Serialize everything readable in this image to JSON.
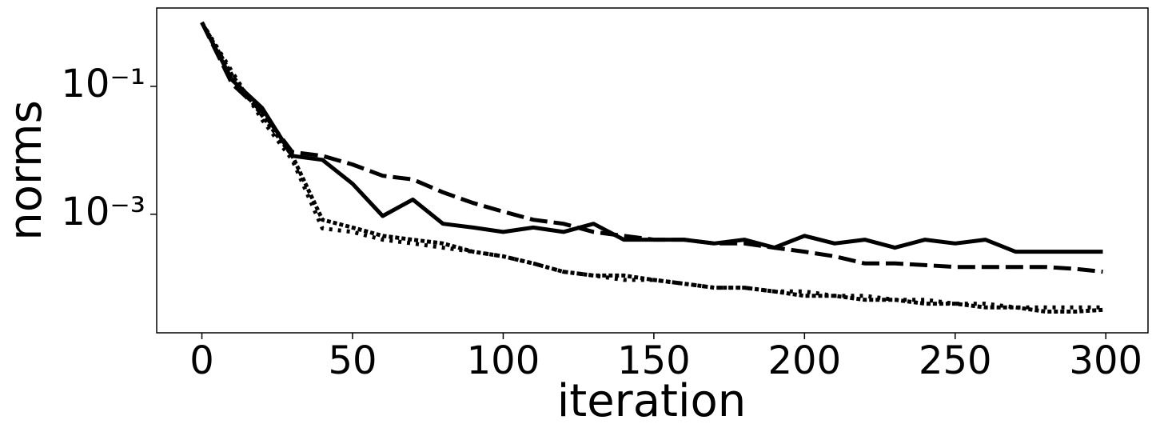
{
  "chart_data": {
    "type": "line",
    "xlabel": "iteration",
    "ylabel": "norms",
    "x": [
      0,
      10,
      20,
      30,
      40,
      50,
      60,
      70,
      80,
      90,
      100,
      110,
      120,
      130,
      140,
      150,
      160,
      170,
      180,
      190,
      200,
      210,
      220,
      230,
      240,
      250,
      260,
      270,
      280,
      290,
      299
    ],
    "series": [
      {
        "color": "#000000",
        "linestyle": "solid",
        "values": [
          1.0,
          0.126,
          0.046,
          0.0082,
          0.0071,
          0.003,
          0.00094,
          0.0017,
          0.00071,
          0.00062,
          0.00053,
          0.00062,
          0.00053,
          0.00071,
          0.0004,
          0.0004,
          0.0004,
          0.00035,
          0.0004,
          0.0003,
          0.00046,
          0.00035,
          0.0004,
          0.0003,
          0.0004,
          0.00035,
          0.0004,
          0.00026,
          0.00026,
          0.00026,
          0.00026
        ]
      },
      {
        "color": "#000000",
        "linestyle": "dashed",
        "values": [
          1.0,
          0.11,
          0.04,
          0.0094,
          0.0082,
          0.006,
          0.004,
          0.0035,
          0.0022,
          0.0015,
          0.0011,
          0.00082,
          0.00071,
          0.00053,
          0.00046,
          0.0004,
          0.0004,
          0.00035,
          0.00035,
          0.0003,
          0.00026,
          0.00022,
          0.00017,
          0.00017,
          0.00016,
          0.00015,
          0.00015,
          0.00015,
          0.00015,
          0.00014,
          0.000126
        ]
      },
      {
        "color": "#000000",
        "linestyle": "dotted",
        "values": [
          1.0,
          0.17,
          0.03,
          0.0071,
          0.0006,
          0.00053,
          0.0004,
          0.00035,
          0.0003,
          0.00026,
          0.00022,
          0.00017,
          0.000126,
          0.00011,
          9.4e-05,
          9.4e-05,
          8.2e-05,
          7.1e-05,
          7.1e-05,
          6.2e-05,
          6.2e-05,
          5.3e-05,
          5.3e-05,
          4.6e-05,
          4.6e-05,
          4e-05,
          4e-05,
          3.5e-05,
          3.5e-05,
          3.5e-05,
          3.5e-05
        ]
      },
      {
        "color": "#000000",
        "linestyle": "densely-dotted",
        "values": [
          1.0,
          0.15,
          0.035,
          0.0082,
          0.00082,
          0.00062,
          0.00046,
          0.0004,
          0.00035,
          0.00026,
          0.00022,
          0.00017,
          0.000126,
          0.00011,
          0.00011,
          9.4e-05,
          8.2e-05,
          7.1e-05,
          7.1e-05,
          6.2e-05,
          5.3e-05,
          5.3e-05,
          4.6e-05,
          4.6e-05,
          4e-05,
          4e-05,
          3.5e-05,
          3.5e-05,
          3e-05,
          3e-05,
          3.2e-05
        ]
      }
    ],
    "xlim": [
      -15,
      314
    ],
    "xticks": [
      0,
      50,
      100,
      150,
      200,
      250,
      300
    ],
    "yscale": "log",
    "ylim": [
      1.4e-05,
      1.68
    ],
    "yticks": [
      {
        "value": 0.1,
        "label": "10⁻¹"
      },
      {
        "value": 0.001,
        "label": "10⁻³"
      }
    ]
  }
}
